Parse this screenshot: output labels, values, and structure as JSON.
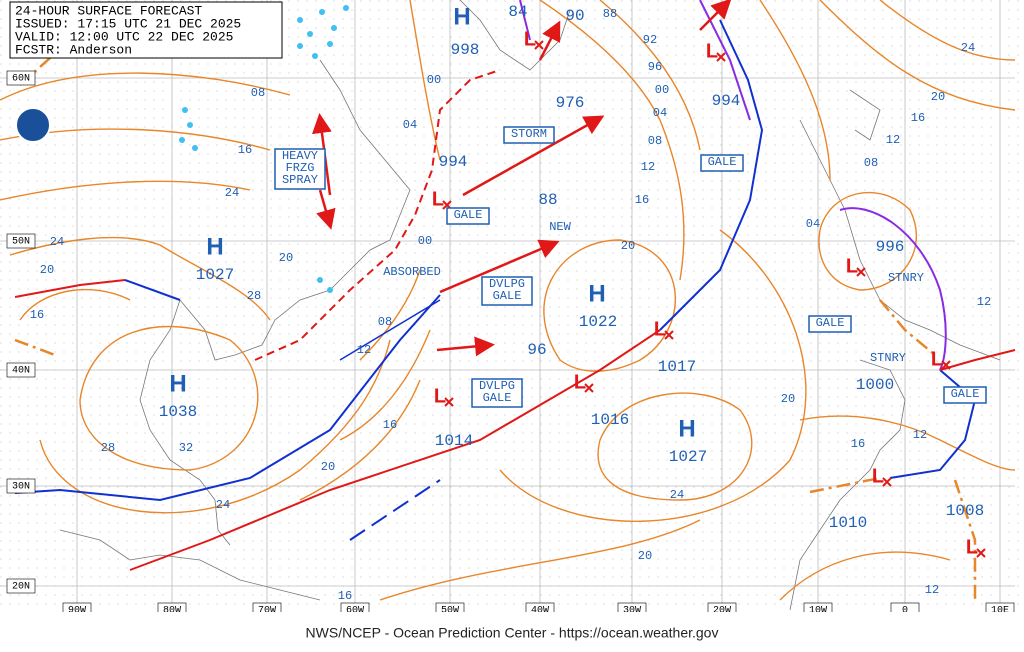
{
  "header": {
    "lines": [
      "24-HOUR SURFACE FORECAST",
      "ISSUED: 17:15 UTC 21 DEC 2025",
      "VALID: 12:00 UTC 22 DEC 2025",
      "FCSTR: Anderson"
    ]
  },
  "footer": "NWS/NCEP - Ocean Prediction Center - https://ocean.weather.gov",
  "lat_labels": [
    "60N",
    "50N",
    "40N",
    "30N",
    "20N"
  ],
  "lon_labels": [
    "90W",
    "80W",
    "70W",
    "60W",
    "50W",
    "40W",
    "30W",
    "20W",
    "10W",
    "0",
    "10E"
  ],
  "symbols": [
    "H",
    "H",
    "H",
    "H",
    "H",
    "L",
    "L",
    "L",
    "L",
    "L",
    "L",
    "L",
    "L",
    "L",
    "L"
  ],
  "pressures": [
    "1027",
    "1038",
    "1022",
    "1027",
    "998",
    "994",
    "994",
    "976",
    "1017",
    "1016",
    "1014",
    "996",
    "1000",
    "1010",
    "1008",
    "88",
    "96",
    "90",
    "84"
  ],
  "isobar_labels": [
    "08",
    "16",
    "24",
    "24",
    "20",
    "16",
    "28",
    "20",
    "28",
    "32",
    "24",
    "20",
    "16",
    "12",
    "08",
    "00",
    "04",
    "00",
    "92",
    "88",
    "96",
    "00",
    "04",
    "08",
    "12",
    "16",
    "20",
    "24",
    "20",
    "16",
    "20",
    "16",
    "12",
    "12",
    "12",
    "04",
    "08",
    "12",
    "16",
    "20",
    "24"
  ],
  "boxes": [
    [
      "STORM"
    ],
    [
      "GALE"
    ],
    [
      "GALE"
    ],
    [
      "GALE"
    ],
    [
      "GALE"
    ],
    [
      "DVLPG",
      "GALE"
    ],
    [
      "DVLPG",
      "GALE"
    ],
    [
      "HEAVY",
      "FRZG",
      "SPRAY"
    ]
  ],
  "notes": [
    "ABSORBED",
    "NEW",
    "STNRY",
    "STNRY"
  ]
}
